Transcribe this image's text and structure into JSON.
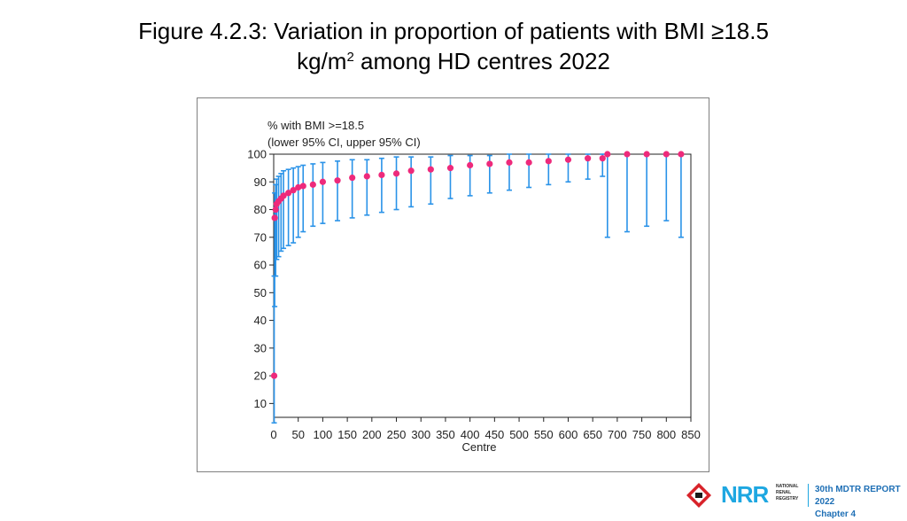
{
  "slide": {
    "title_line1": "Figure 4.2.3: Variation in proportion of patients with BMI ≥18.5",
    "title_line2_a": "kg/m",
    "title_line2_sup": "2",
    "title_line2_b": " among HD centres 2022"
  },
  "footer": {
    "brand": "NRR",
    "org_line1": "NATIONAL",
    "org_line2": "RENAL",
    "org_line3": "REGISTRY",
    "report_line1": "30th MDTR REPORT 2022",
    "report_line2": "Chapter 4"
  },
  "colors": {
    "point": "#ee2a7b",
    "error_bar": "#2a93e8",
    "brand_blue": "#1ea7e1"
  },
  "chart_data": {
    "type": "scatter",
    "title": "% with BMI >=18.5",
    "subtitle": "(lower 95% CI, upper 95% CI)",
    "xlabel": "Centre",
    "ylabel": "",
    "xlim": [
      0,
      850
    ],
    "ylim": [
      5,
      100
    ],
    "x_ticks": [
      "0",
      "50",
      "100",
      "150",
      "200",
      "250",
      "300",
      "350",
      "400",
      "450",
      "500",
      "550",
      "600",
      "650",
      "700",
      "750",
      "800",
      "850"
    ],
    "y_ticks": [
      "10",
      "20",
      "30",
      "40",
      "50",
      "60",
      "70",
      "80",
      "90",
      "100"
    ],
    "grid": false,
    "legend": "none",
    "series": [
      {
        "x": [
          1,
          2,
          4,
          6,
          10,
          15,
          20,
          30,
          40,
          50,
          60,
          80,
          100,
          130,
          160,
          190,
          220,
          250,
          280,
          320,
          360,
          400,
          440,
          480,
          520,
          560,
          600,
          640,
          670,
          680,
          720,
          760,
          800,
          830
        ],
        "y": [
          20,
          77,
          80,
          82,
          83,
          84,
          85,
          86,
          87,
          88,
          88.5,
          89,
          90,
          90.5,
          91.5,
          92,
          92.5,
          93,
          94,
          94.5,
          95,
          96,
          96.5,
          97,
          97,
          97.5,
          98,
          98.5,
          98.5,
          100,
          100,
          100,
          100,
          100
        ],
        "lower": [
          3,
          45,
          56,
          62,
          63,
          65,
          66,
          67,
          68,
          70,
          72,
          74,
          75,
          76,
          77,
          78,
          79,
          80,
          81,
          82,
          84,
          85,
          86,
          87,
          88,
          89,
          90,
          91,
          92,
          70,
          72,
          74,
          76,
          70
        ],
        "upper": [
          56,
          86,
          89,
          91,
          92,
          93,
          94,
          94.5,
          95,
          95.5,
          96,
          96.5,
          97,
          97.5,
          98,
          98,
          98.5,
          99,
          99,
          99,
          99.5,
          99.5,
          99.5,
          100,
          100,
          100,
          100,
          100,
          100,
          100,
          100,
          100,
          100,
          100
        ]
      }
    ]
  }
}
